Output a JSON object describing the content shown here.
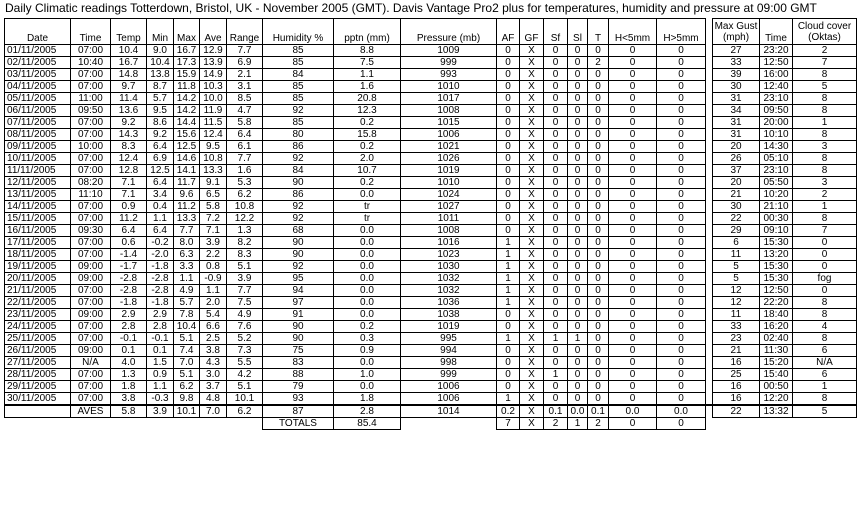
{
  "title": "Daily Climatic readings Totterdown, Bristol, UK - November 2005 (GMT). Davis Vantage Pro2 plus for temperatures, humidity and pressure at 09:00 GMT",
  "headers": {
    "date": "Date",
    "time": "Time",
    "temp": "Temp",
    "min": "Min",
    "max": "Max",
    "ave": "Ave",
    "range": "Range",
    "humidity": "Humidity %",
    "pptn": "pptn (mm)",
    "pressure": "Pressure (mb)",
    "af": "AF",
    "gf": "GF",
    "sf": "Sf",
    "sl": "Sl",
    "t": "T",
    "hlt5": "H<5mm",
    "hgt5": "H>5mm",
    "gust_line1": "Max Gust",
    "gust_line2": "(mph)",
    "gust_time": "Time",
    "cloud_line1": "Cloud cover",
    "cloud_line2": "(Oktas)"
  },
  "rows": [
    [
      "01/11/2005",
      "07:00",
      "10.4",
      "9.0",
      "16.7",
      "12.9",
      "7.7",
      "85",
      "8.8",
      "1009",
      "0",
      "X",
      "0",
      "0",
      "0",
      "0",
      "0",
      "27",
      "23:20",
      "2"
    ],
    [
      "02/11/2005",
      "10:40",
      "16.7",
      "10.4",
      "17.3",
      "13.9",
      "6.9",
      "85",
      "7.5",
      "999",
      "0",
      "X",
      "0",
      "0",
      "2",
      "0",
      "0",
      "33",
      "12:50",
      "7"
    ],
    [
      "03/11/2005",
      "07:00",
      "14.8",
      "13.8",
      "15.9",
      "14.9",
      "2.1",
      "84",
      "1.1",
      "993",
      "0",
      "X",
      "0",
      "0",
      "0",
      "0",
      "0",
      "39",
      "16:00",
      "8"
    ],
    [
      "04/11/2005",
      "07:00",
      "9.7",
      "8.7",
      "11.8",
      "10.3",
      "3.1",
      "85",
      "1.6",
      "1010",
      "0",
      "X",
      "0",
      "0",
      "0",
      "0",
      "0",
      "30",
      "12:40",
      "5"
    ],
    [
      "05/11/2005",
      "11:00",
      "11.4",
      "5.7",
      "14.2",
      "10.0",
      "8.5",
      "85",
      "20.8",
      "1017",
      "0",
      "X",
      "0",
      "0",
      "0",
      "0",
      "0",
      "31",
      "23:10",
      "8"
    ],
    [
      "06/11/2005",
      "09:50",
      "13.6",
      "9.5",
      "14.2",
      "11.9",
      "4.7",
      "92",
      "12.3",
      "1008",
      "0",
      "X",
      "0",
      "0",
      "0",
      "0",
      "0",
      "34",
      "09:50",
      "8"
    ],
    [
      "07/11/2005",
      "07:00",
      "9.2",
      "8.6",
      "14.4",
      "11.5",
      "5.8",
      "85",
      "0.2",
      "1015",
      "0",
      "X",
      "0",
      "0",
      "0",
      "0",
      "0",
      "31",
      "20:00",
      "1"
    ],
    [
      "08/11/2005",
      "07:00",
      "14.3",
      "9.2",
      "15.6",
      "12.4",
      "6.4",
      "80",
      "15.8",
      "1006",
      "0",
      "X",
      "0",
      "0",
      "0",
      "0",
      "0",
      "31",
      "10:10",
      "8"
    ],
    [
      "09/11/2005",
      "10:00",
      "8.3",
      "6.4",
      "12.5",
      "9.5",
      "6.1",
      "86",
      "0.2",
      "1021",
      "0",
      "X",
      "0",
      "0",
      "0",
      "0",
      "0",
      "20",
      "14:30",
      "3"
    ],
    [
      "10/11/2005",
      "07:00",
      "12.4",
      "6.9",
      "14.6",
      "10.8",
      "7.7",
      "92",
      "2.0",
      "1026",
      "0",
      "X",
      "0",
      "0",
      "0",
      "0",
      "0",
      "26",
      "05:10",
      "8"
    ],
    [
      "11/11/2005",
      "07:00",
      "12.8",
      "12.5",
      "14.1",
      "13.3",
      "1.6",
      "84",
      "10.7",
      "1019",
      "0",
      "X",
      "0",
      "0",
      "0",
      "0",
      "0",
      "37",
      "23:10",
      "8"
    ],
    [
      "12/11/2005",
      "08:20",
      "7.1",
      "6.4",
      "11.7",
      "9.1",
      "5.3",
      "90",
      "0.2",
      "1010",
      "0",
      "X",
      "0",
      "0",
      "0",
      "0",
      "0",
      "20",
      "05:50",
      "3"
    ],
    [
      "13/11/2005",
      "11:10",
      "7.1",
      "3.4",
      "9.6",
      "6.5",
      "6.2",
      "86",
      "0.0",
      "1024",
      "0",
      "X",
      "0",
      "0",
      "0",
      "0",
      "0",
      "21",
      "10:20",
      "2"
    ],
    [
      "14/11/2005",
      "07:00",
      "0.9",
      "0.4",
      "11.2",
      "5.8",
      "10.8",
      "92",
      "tr",
      "1027",
      "0",
      "X",
      "0",
      "0",
      "0",
      "0",
      "0",
      "30",
      "21:10",
      "1"
    ],
    [
      "15/11/2005",
      "07:00",
      "11.2",
      "1.1",
      "13.3",
      "7.2",
      "12.2",
      "92",
      "tr",
      "1011",
      "0",
      "X",
      "0",
      "0",
      "0",
      "0",
      "0",
      "22",
      "00:30",
      "8"
    ],
    [
      "16/11/2005",
      "09:30",
      "6.4",
      "6.4",
      "7.7",
      "7.1",
      "1.3",
      "68",
      "0.0",
      "1008",
      "0",
      "X",
      "0",
      "0",
      "0",
      "0",
      "0",
      "29",
      "09:10",
      "7"
    ],
    [
      "17/11/2005",
      "07:00",
      "0.6",
      "-0.2",
      "8.0",
      "3.9",
      "8.2",
      "90",
      "0.0",
      "1016",
      "1",
      "X",
      "0",
      "0",
      "0",
      "0",
      "0",
      "6",
      "15:30",
      "0"
    ],
    [
      "18/11/2005",
      "07:00",
      "-1.4",
      "-2.0",
      "6.3",
      "2.2",
      "8.3",
      "90",
      "0.0",
      "1023",
      "1",
      "X",
      "0",
      "0",
      "0",
      "0",
      "0",
      "11",
      "13:20",
      "0"
    ],
    [
      "19/11/2005",
      "09:00",
      "-1.7",
      "-1.8",
      "3.3",
      "0.8",
      "5.1",
      "92",
      "0.0",
      "1030",
      "1",
      "X",
      "0",
      "0",
      "0",
      "0",
      "0",
      "5",
      "15:30",
      "0"
    ],
    [
      "20/11/2005",
      "09:00",
      "-2.8",
      "-2.8",
      "1.1",
      "-0.9",
      "3.9",
      "95",
      "0.0",
      "1032",
      "1",
      "X",
      "0",
      "0",
      "0",
      "0",
      "0",
      "5",
      "15:30",
      "fog"
    ],
    [
      "21/11/2005",
      "07:00",
      "-2.8",
      "-2.8",
      "4.9",
      "1.1",
      "7.7",
      "94",
      "0.0",
      "1032",
      "1",
      "X",
      "0",
      "0",
      "0",
      "0",
      "0",
      "12",
      "12:50",
      "0"
    ],
    [
      "22/11/2005",
      "07:00",
      "-1.8",
      "-1.8",
      "5.7",
      "2.0",
      "7.5",
      "97",
      "0.0",
      "1036",
      "1",
      "X",
      "0",
      "0",
      "0",
      "0",
      "0",
      "12",
      "22:20",
      "8"
    ],
    [
      "23/11/2005",
      "09:00",
      "2.9",
      "2.9",
      "7.8",
      "5.4",
      "4.9",
      "91",
      "0.0",
      "1038",
      "0",
      "X",
      "0",
      "0",
      "0",
      "0",
      "0",
      "11",
      "18:40",
      "8"
    ],
    [
      "24/11/2005",
      "07:00",
      "2.8",
      "2.8",
      "10.4",
      "6.6",
      "7.6",
      "90",
      "0.2",
      "1019",
      "0",
      "X",
      "0",
      "0",
      "0",
      "0",
      "0",
      "33",
      "16:20",
      "4"
    ],
    [
      "25/11/2005",
      "07:00",
      "-0.1",
      "-0.1",
      "5.1",
      "2.5",
      "5.2",
      "90",
      "0.3",
      "995",
      "1",
      "X",
      "1",
      "1",
      "0",
      "0",
      "0",
      "23",
      "02:40",
      "8"
    ],
    [
      "26/11/2005",
      "09:00",
      "0.1",
      "0.1",
      "7.4",
      "3.8",
      "7.3",
      "75",
      "0.9",
      "994",
      "0",
      "X",
      "0",
      "0",
      "0",
      "0",
      "0",
      "21",
      "11:30",
      "6"
    ],
    [
      "27/11/2005",
      "N/A",
      "4.0",
      "1.5",
      "7.0",
      "4.3",
      "5.5",
      "83",
      "0.0",
      "998",
      "0",
      "X",
      "0",
      "0",
      "0",
      "0",
      "0",
      "16",
      "15:20",
      "N/A"
    ],
    [
      "28/11/2005",
      "07:00",
      "1.3",
      "0.9",
      "5.1",
      "3.0",
      "4.2",
      "88",
      "1.0",
      "999",
      "0",
      "X",
      "1",
      "0",
      "0",
      "0",
      "0",
      "25",
      "15:40",
      "6"
    ],
    [
      "29/11/2005",
      "07:00",
      "1.8",
      "1.1",
      "6.2",
      "3.7",
      "5.1",
      "79",
      "0.0",
      "1006",
      "0",
      "X",
      "0",
      "0",
      "0",
      "0",
      "0",
      "16",
      "00:50",
      "1"
    ],
    [
      "30/11/2005",
      "07:00",
      "3.8",
      "-0.3",
      "9.8",
      "4.8",
      "10.1",
      "93",
      "1.8",
      "1006",
      "1",
      "X",
      "0",
      "0",
      "0",
      "0",
      "0",
      "16",
      "12:20",
      "8"
    ]
  ],
  "aves": {
    "label": "AVES",
    "temp": "5.8",
    "min": "3.9",
    "max": "10.1",
    "ave": "7.0",
    "range": "6.2",
    "humidity": "87",
    "pptn": "2.8",
    "pressure": "1014",
    "af": "0.2",
    "gf": "X",
    "sf": "0.1",
    "sl": "0.0",
    "t": "0.1",
    "hlt5": "0.0",
    "hgt5": "0.0",
    "gust": "22",
    "gust_time": "13:32",
    "cloud": "5"
  },
  "totals": {
    "label": "TOTALS",
    "pptn": "85.4",
    "af": "7",
    "gf": "X",
    "sf": "2",
    "sl": "1",
    "t": "2",
    "hlt5": "0",
    "hgt5": "0"
  }
}
